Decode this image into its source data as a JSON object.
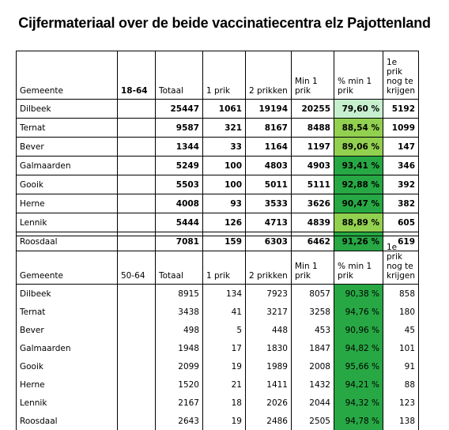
{
  "title": "Cijfermateriaal over de beide vaccinatiecentra elz Pajottenland",
  "tables": [
    {
      "headers": [
        "Gemeente",
        "18-64",
        "Totaal",
        "1 prik",
        "2 prikken",
        "Min 1 prik",
        "% min 1 prik",
        "1e prik nog te krijgen"
      ],
      "rows": [
        {
          "gemeente": "Dilbeek",
          "totaal": "25447",
          "prik1": "1061",
          "prik2": "19194",
          "min1": "20255",
          "pct": "79,60 %",
          "nog": "5192",
          "shade": "#c6efce"
        },
        {
          "gemeente": "Ternat",
          "totaal": "9587",
          "prik1": "321",
          "prik2": "8167",
          "min1": "8488",
          "pct": "88,54 %",
          "nog": "1099",
          "shade": "#92d050"
        },
        {
          "gemeente": "Bever",
          "totaal": "1344",
          "prik1": "33",
          "prik2": "1164",
          "min1": "1197",
          "pct": "89,06 %",
          "nog": "147",
          "shade": "#92d050"
        },
        {
          "gemeente": "Galmaarden",
          "totaal": "5249",
          "prik1": "100",
          "prik2": "4803",
          "min1": "4903",
          "pct": "93,41 %",
          "nog": "346",
          "shade": "#27a844"
        },
        {
          "gemeente": "Gooik",
          "totaal": "5503",
          "prik1": "100",
          "prik2": "5011",
          "min1": "5111",
          "pct": "92,88 %",
          "nog": "392",
          "shade": "#27a844"
        },
        {
          "gemeente": "Herne",
          "totaal": "4008",
          "prik1": "93",
          "prik2": "3533",
          "min1": "3626",
          "pct": "90,47 %",
          "nog": "382",
          "shade": "#27a844"
        },
        {
          "gemeente": "Lennik",
          "totaal": "5444",
          "prik1": "126",
          "prik2": "4713",
          "min1": "4839",
          "pct": "88,89 %",
          "nog": "605",
          "shade": "#92d050"
        },
        {
          "gemeente": "Roosdaal",
          "totaal": "7081",
          "prik1": "159",
          "prik2": "6303",
          "min1": "6462",
          "pct": "91,26 %",
          "nog": "619",
          "shade": "#27a844"
        }
      ]
    },
    {
      "headers": [
        "Gemeente",
        "50-64",
        "Totaal",
        "1 prik",
        "2 prikken",
        "Min 1 prik",
        "% min 1 prik",
        "1e prik nog te krijgen"
      ],
      "rows": [
        {
          "gemeente": "Dilbeek",
          "totaal": "8915",
          "prik1": "134",
          "prik2": "7923",
          "min1": "8057",
          "pct": "90,38 %",
          "nog": "858",
          "shade": "#27a844"
        },
        {
          "gemeente": "Ternat",
          "totaal": "3438",
          "prik1": "41",
          "prik2": "3217",
          "min1": "3258",
          "pct": "94,76 %",
          "nog": "180",
          "shade": "#27a844"
        },
        {
          "gemeente": "Bever",
          "totaal": "498",
          "prik1": "5",
          "prik2": "448",
          "min1": "453",
          "pct": "90,96 %",
          "nog": "45",
          "shade": "#27a844"
        },
        {
          "gemeente": "Galmaarden",
          "totaal": "1948",
          "prik1": "17",
          "prik2": "1830",
          "min1": "1847",
          "pct": "94,82 %",
          "nog": "101",
          "shade": "#27a844"
        },
        {
          "gemeente": "Gooik",
          "totaal": "2099",
          "prik1": "19",
          "prik2": "1989",
          "min1": "2008",
          "pct": "95,66 %",
          "nog": "91",
          "shade": "#27a844"
        },
        {
          "gemeente": "Herne",
          "totaal": "1520",
          "prik1": "21",
          "prik2": "1411",
          "min1": "1432",
          "pct": "94,21 %",
          "nog": "88",
          "shade": "#27a844"
        },
        {
          "gemeente": "Lennik",
          "totaal": "2167",
          "prik1": "18",
          "prik2": "2026",
          "min1": "2044",
          "pct": "94,32 %",
          "nog": "123",
          "shade": "#27a844"
        },
        {
          "gemeente": "Roosdaal",
          "totaal": "2643",
          "prik1": "19",
          "prik2": "2486",
          "min1": "2505",
          "pct": "94,78 %",
          "nog": "138",
          "shade": "#27a844"
        }
      ]
    }
  ]
}
